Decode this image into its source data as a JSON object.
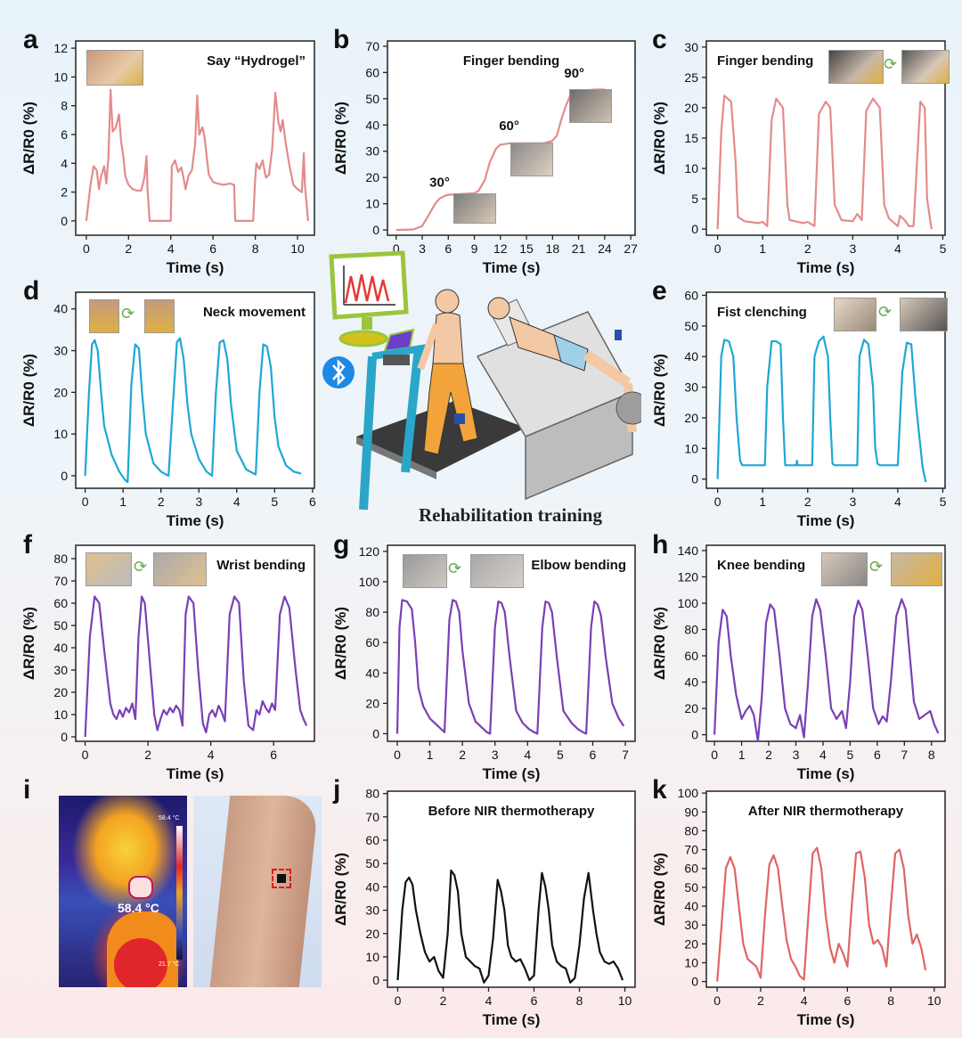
{
  "panel_labels": [
    "a",
    "b",
    "c",
    "d",
    "e",
    "f",
    "g",
    "h",
    "i",
    "j",
    "k"
  ],
  "center": {
    "caption": "Rehabilitation training",
    "colors": {
      "monitor": "#9bc53d",
      "bluetooth": "#1e88e5",
      "pants": "#f2a33a",
      "treadmill": "#2aa6c8"
    }
  },
  "thermal": {
    "temp_label": "58.4 °C",
    "scale_max": "58.4 °C",
    "scale_min": "21.7 °C"
  },
  "chart_data": [
    {
      "id": "a",
      "type": "line",
      "title": "Say “Hydrogel”",
      "xlabel": "Time (s)",
      "ylabel": "ΔR/R0 (%)",
      "xlim": [
        -0.5,
        10.8
      ],
      "ylim": [
        -1,
        12.5
      ],
      "xticks": [
        0,
        2,
        4,
        6,
        8,
        10
      ],
      "yticks": [
        0,
        2,
        4,
        6,
        8,
        10,
        12
      ],
      "color": "#e48b8b",
      "x": [
        0,
        0.2,
        0.35,
        0.5,
        0.6,
        0.7,
        0.85,
        0.95,
        1.05,
        1.15,
        1.25,
        1.4,
        1.55,
        1.65,
        1.75,
        1.85,
        2.0,
        2.2,
        2.4,
        2.6,
        2.75,
        2.85,
        2.9,
        3.0,
        3.05,
        3.1,
        3.6,
        4.0,
        4.05,
        4.2,
        4.35,
        4.5,
        4.6,
        4.7,
        4.85,
        5.0,
        5.15,
        5.25,
        5.35,
        5.5,
        5.6,
        5.7,
        5.8,
        6.0,
        6.2,
        6.5,
        6.8,
        7.0,
        7.05,
        7.5,
        7.9,
        8.0,
        8.05,
        8.2,
        8.35,
        8.5,
        8.65,
        8.8,
        8.95,
        9.1,
        9.2,
        9.3,
        9.45,
        9.6,
        9.8,
        10.0,
        10.2,
        10.3,
        10.35,
        10.5
      ],
      "y": [
        0,
        2.5,
        3.8,
        3.5,
        2.2,
        3.1,
        3.8,
        2.6,
        4.5,
        9.1,
        6.2,
        6.5,
        7.4,
        5.5,
        4.5,
        3.1,
        2.5,
        2.2,
        2.1,
        2.1,
        3.0,
        4.5,
        2.2,
        0,
        0,
        0,
        0,
        0,
        3.8,
        4.2,
        3.4,
        3.7,
        3.0,
        2.2,
        3.2,
        3.5,
        5.3,
        8.7,
        6.0,
        6.5,
        5.8,
        4.5,
        3.2,
        2.7,
        2.6,
        2.5,
        2.6,
        2.5,
        0,
        0,
        0,
        3.0,
        4.0,
        3.6,
        4.2,
        3.0,
        3.2,
        5.0,
        8.9,
        6.8,
        6.2,
        7.0,
        5.3,
        4.0,
        2.5,
        2.2,
        2.0,
        4.7,
        2.5,
        0
      ]
    },
    {
      "id": "b",
      "type": "line",
      "title": "Finger bending",
      "xlabel": "Time (s)",
      "ylabel": "ΔR/R0 (%)",
      "xlim": [
        -1,
        27.5
      ],
      "ylim": [
        -2,
        72
      ],
      "xticks": [
        0,
        3,
        6,
        9,
        12,
        15,
        18,
        21,
        24,
        27
      ],
      "yticks": [
        0,
        10,
        20,
        30,
        40,
        50,
        60,
        70
      ],
      "color": "#e48b8b",
      "annotations": [
        {
          "text": "30°",
          "x": 5,
          "y": 16.5
        },
        {
          "text": "60°",
          "x": 13,
          "y": 38
        },
        {
          "text": "90°",
          "x": 20.5,
          "y": 58
        }
      ],
      "x": [
        0,
        2,
        3,
        3.8,
        4.5,
        5,
        5.6,
        6,
        7,
        8,
        9,
        9.5,
        10.2,
        10.8,
        11.5,
        12,
        13,
        15,
        17,
        18,
        18.5,
        19,
        19.5,
        20,
        20.5,
        21,
        22,
        23,
        24
      ],
      "y": [
        0,
        0.2,
        1.5,
        6,
        10,
        12,
        13,
        13.4,
        13.6,
        13.8,
        14,
        15,
        19,
        26,
        31,
        32.5,
        33,
        33,
        33,
        34,
        36,
        42,
        47,
        51,
        52.5,
        53,
        53.3,
        53.5,
        53.5
      ]
    },
    {
      "id": "c",
      "type": "line",
      "title": "Finger bending",
      "xlabel": "Time (s)",
      "ylabel": "ΔR/R0 (%)",
      "xlim": [
        -0.25,
        5.05
      ],
      "ylim": [
        -1,
        31
      ],
      "xticks": [
        0,
        1,
        2,
        3,
        4,
        5
      ],
      "yticks": [
        0,
        5,
        10,
        15,
        20,
        25,
        30
      ],
      "color": "#e48b8b",
      "x": [
        0,
        0.08,
        0.15,
        0.3,
        0.4,
        0.45,
        0.6,
        0.9,
        1.0,
        1.1,
        1.2,
        1.3,
        1.45,
        1.55,
        1.6,
        1.9,
        2.0,
        2.15,
        2.25,
        2.4,
        2.5,
        2.6,
        2.75,
        3.0,
        3.1,
        3.2,
        3.3,
        3.45,
        3.6,
        3.7,
        3.8,
        4.0,
        4.05,
        4.15,
        4.25,
        4.35,
        4.5,
        4.6,
        4.65,
        4.75
      ],
      "y": [
        0,
        16,
        22,
        21,
        11,
        2,
        1.3,
        1.0,
        1.2,
        0.5,
        18,
        21.5,
        20,
        4,
        1.5,
        1.0,
        1.2,
        0.5,
        19,
        21,
        20,
        4,
        1.5,
        1.3,
        2.5,
        1.5,
        19.5,
        21.5,
        20,
        4,
        1.8,
        0.5,
        2.2,
        1.5,
        0.5,
        0.5,
        21,
        20,
        5,
        0
      ]
    },
    {
      "id": "d",
      "type": "line",
      "title": "Neck movement",
      "xlabel": "Time (s)",
      "ylabel": "ΔR/R0 (%)",
      "xlim": [
        -0.25,
        6.05
      ],
      "ylim": [
        -3,
        44
      ],
      "xticks": [
        0,
        1,
        2,
        3,
        4,
        5,
        6
      ],
      "yticks": [
        0,
        10,
        20,
        30,
        40
      ],
      "color": "#1ea7d6",
      "x": [
        0,
        0.1,
        0.18,
        0.25,
        0.33,
        0.42,
        0.5,
        0.7,
        0.9,
        1.05,
        1.12,
        1.22,
        1.32,
        1.42,
        1.5,
        1.6,
        1.8,
        2.0,
        2.2,
        2.3,
        2.42,
        2.5,
        2.6,
        2.7,
        2.8,
        3.0,
        3.2,
        3.35,
        3.45,
        3.55,
        3.65,
        3.75,
        3.85,
        4.0,
        4.25,
        4.5,
        4.6,
        4.7,
        4.8,
        4.9,
        5.0,
        5.1,
        5.3,
        5.5,
        5.7
      ],
      "y": [
        0,
        20,
        31.5,
        32.5,
        30,
        20,
        12,
        5,
        1,
        -1,
        -1.5,
        22,
        31.5,
        30.5,
        20,
        10,
        3,
        1,
        0,
        15,
        32,
        33,
        28,
        17,
        10,
        4,
        1,
        0,
        20,
        32,
        32.5,
        28,
        17,
        6,
        1.5,
        0.3,
        20,
        31.5,
        31,
        26,
        14,
        7,
        2.5,
        1,
        0.5
      ]
    },
    {
      "id": "e",
      "type": "line",
      "title": "Fist clenching",
      "xlabel": "Time (s)",
      "ylabel": "ΔR/R0 (%)",
      "xlim": [
        -0.25,
        5.05
      ],
      "ylim": [
        -3,
        61
      ],
      "xticks": [
        0,
        1,
        2,
        3,
        4,
        5
      ],
      "yticks": [
        0,
        10,
        20,
        30,
        40,
        50,
        60
      ],
      "color": "#1ea7d6",
      "x": [
        0,
        0.08,
        0.15,
        0.25,
        0.35,
        0.42,
        0.5,
        0.55,
        0.9,
        1.05,
        1.1,
        1.2,
        1.3,
        1.4,
        1.45,
        1.5,
        1.6,
        1.75,
        1.76,
        1.78,
        2.1,
        2.15,
        2.25,
        2.35,
        2.45,
        2.5,
        2.55,
        2.6,
        3.1,
        3.15,
        3.25,
        3.35,
        3.45,
        3.5,
        3.55,
        3.6,
        4.0,
        4.1,
        4.2,
        4.3,
        4.4,
        4.55,
        4.62
      ],
      "y": [
        0,
        40,
        45.5,
        45,
        40,
        20,
        6,
        4.5,
        4.5,
        4.5,
        30,
        45,
        45,
        44,
        20,
        4.5,
        4.5,
        4.5,
        6,
        4.5,
        4.5,
        40,
        45,
        46.5,
        40,
        20,
        5,
        4.5,
        4.5,
        40,
        45.5,
        44,
        30,
        10,
        5,
        4.5,
        4.5,
        35,
        44.5,
        44,
        25,
        4,
        -1
      ]
    },
    {
      "id": "f",
      "type": "line",
      "title": "Wrist bending",
      "xlabel": "Time (s)",
      "ylabel": "ΔR/R0 (%)",
      "xlim": [
        -0.3,
        7.3
      ],
      "ylim": [
        -2,
        86
      ],
      "xticks": [
        0,
        2,
        4,
        6
      ],
      "yticks": [
        0,
        10,
        20,
        30,
        40,
        50,
        60,
        70,
        80
      ],
      "color": "#7a3fb5",
      "x": [
        0,
        0.15,
        0.3,
        0.45,
        0.6,
        0.8,
        0.9,
        1.0,
        1.1,
        1.2,
        1.3,
        1.4,
        1.5,
        1.6,
        1.7,
        1.8,
        1.9,
        2.05,
        2.2,
        2.3,
        2.4,
        2.5,
        2.6,
        2.7,
        2.8,
        2.9,
        3.0,
        3.1,
        3.2,
        3.3,
        3.45,
        3.6,
        3.75,
        3.85,
        3.95,
        4.05,
        4.15,
        4.25,
        4.35,
        4.45,
        4.6,
        4.75,
        4.9,
        5.05,
        5.2,
        5.35,
        5.45,
        5.55,
        5.65,
        5.75,
        5.85,
        5.95,
        6.05,
        6.2,
        6.35,
        6.5,
        6.7,
        6.85,
        6.95,
        7.05
      ],
      "y": [
        0,
        45,
        63,
        60,
        40,
        15,
        10,
        8,
        12,
        9,
        13,
        11,
        15,
        8,
        45,
        63,
        60,
        35,
        10,
        3,
        8,
        12,
        10,
        13,
        11,
        14,
        12,
        5,
        55,
        63,
        60,
        30,
        6,
        2,
        10,
        12,
        9,
        14,
        11,
        7,
        55,
        63,
        60,
        25,
        5,
        3,
        12,
        10,
        16,
        13,
        11,
        15,
        12,
        55,
        63,
        58,
        30,
        12,
        8,
        5
      ]
    },
    {
      "id": "g",
      "type": "line",
      "title": "Elbow bending",
      "xlabel": "Time (s)",
      "ylabel": "ΔR/R0 (%)",
      "xlim": [
        -0.3,
        7.3
      ],
      "ylim": [
        -5,
        124
      ],
      "xticks": [
        0,
        1,
        2,
        3,
        4,
        5,
        6,
        7
      ],
      "yticks": [
        0,
        20,
        40,
        60,
        80,
        100,
        120
      ],
      "color": "#7a3fb5",
      "x": [
        0,
        0.07,
        0.15,
        0.3,
        0.45,
        0.55,
        0.65,
        0.8,
        1.0,
        1.2,
        1.35,
        1.45,
        1.6,
        1.7,
        1.8,
        1.9,
        2.0,
        2.2,
        2.4,
        2.6,
        2.75,
        2.85,
        3.0,
        3.1,
        3.2,
        3.3,
        3.45,
        3.65,
        3.85,
        4.05,
        4.2,
        4.3,
        4.45,
        4.55,
        4.65,
        4.75,
        4.9,
        5.1,
        5.35,
        5.55,
        5.7,
        5.8,
        5.95,
        6.05,
        6.15,
        6.25,
        6.4,
        6.6,
        6.8,
        6.95
      ],
      "y": [
        0,
        70,
        88,
        87,
        82,
        60,
        30,
        18,
        10,
        6,
        3,
        1,
        75,
        88,
        87,
        80,
        55,
        20,
        8,
        4,
        1,
        0,
        70,
        87,
        86,
        80,
        50,
        15,
        7,
        3,
        1,
        0,
        70,
        87,
        86,
        80,
        50,
        15,
        7,
        3,
        1,
        0,
        70,
        87,
        85,
        78,
        50,
        20,
        10,
        5
      ]
    },
    {
      "id": "h",
      "type": "line",
      "title": "Knee bending",
      "xlabel": "Time (s)",
      "ylabel": "ΔR/R0 (%)",
      "xlim": [
        -0.3,
        8.5
      ],
      "ylim": [
        -5,
        144
      ],
      "xticks": [
        0,
        1,
        2,
        3,
        4,
        5,
        6,
        7,
        8
      ],
      "yticks": [
        0,
        20,
        40,
        60,
        80,
        100,
        120,
        140
      ],
      "color": "#7a3fb5",
      "x": [
        0,
        0.15,
        0.3,
        0.45,
        0.6,
        0.8,
        1.0,
        1.15,
        1.3,
        1.45,
        1.6,
        1.75,
        1.9,
        2.05,
        2.2,
        2.4,
        2.6,
        2.8,
        3.0,
        3.15,
        3.3,
        3.45,
        3.6,
        3.75,
        3.9,
        4.1,
        4.3,
        4.5,
        4.7,
        4.85,
        5.0,
        5.15,
        5.3,
        5.45,
        5.65,
        5.85,
        6.05,
        6.2,
        6.35,
        6.5,
        6.7,
        6.9,
        7.05,
        7.2,
        7.35,
        7.55,
        7.75,
        7.95,
        8.1,
        8.25
      ],
      "y": [
        0,
        70,
        95,
        90,
        60,
        30,
        12,
        18,
        22,
        15,
        -5,
        30,
        85,
        99,
        95,
        60,
        20,
        8,
        5,
        15,
        -2,
        40,
        90,
        103,
        95,
        60,
        20,
        12,
        18,
        5,
        40,
        90,
        102,
        95,
        60,
        20,
        8,
        14,
        10,
        40,
        90,
        103,
        95,
        60,
        25,
        12,
        15,
        18,
        8,
        1
      ]
    },
    {
      "id": "j",
      "type": "line",
      "title": "Before NIR thermotherapy",
      "xlabel": "Time (s)",
      "ylabel": "ΔR/R0 (%)",
      "xlim": [
        -0.45,
        10.45
      ],
      "ylim": [
        -3,
        81
      ],
      "xticks": [
        0,
        2,
        4,
        6,
        8,
        10
      ],
      "yticks": [
        0,
        10,
        20,
        30,
        40,
        50,
        60,
        70,
        80
      ],
      "color": "#111111",
      "x": [
        0,
        0.2,
        0.35,
        0.5,
        0.65,
        0.8,
        1.0,
        1.2,
        1.4,
        1.6,
        1.8,
        2.0,
        2.2,
        2.35,
        2.5,
        2.65,
        2.8,
        3.0,
        3.2,
        3.4,
        3.6,
        3.8,
        4.0,
        4.2,
        4.4,
        4.55,
        4.7,
        4.85,
        5.0,
        5.2,
        5.4,
        5.6,
        5.8,
        6.0,
        6.2,
        6.35,
        6.5,
        6.65,
        6.8,
        7.0,
        7.2,
        7.4,
        7.6,
        7.8,
        8.0,
        8.2,
        8.4,
        8.6,
        8.75,
        8.9,
        9.1,
        9.3,
        9.5,
        9.7,
        9.9
      ],
      "y": [
        0,
        30,
        42,
        44,
        41,
        30,
        20,
        12,
        8,
        10,
        4,
        1,
        20,
        47,
        45,
        38,
        20,
        10,
        8,
        6,
        5,
        -1,
        2,
        18,
        43,
        38,
        30,
        15,
        10,
        8,
        9,
        5,
        0,
        2,
        30,
        46,
        40,
        30,
        15,
        8,
        6,
        5,
        -1,
        1,
        15,
        35,
        46,
        30,
        20,
        12,
        8,
        7,
        8,
        5,
        0
      ]
    },
    {
      "id": "k",
      "type": "line",
      "title": "After NIR thermotherapy",
      "xlabel": "Time (s)",
      "ylabel": "ΔR/R0 (%)",
      "xlim": [
        -0.5,
        10.5
      ],
      "ylim": [
        -3,
        101
      ],
      "xticks": [
        0,
        2,
        4,
        6,
        8,
        10
      ],
      "yticks": [
        0,
        10,
        20,
        30,
        40,
        50,
        60,
        70,
        80,
        90,
        100
      ],
      "color": "#e06464",
      "x": [
        0,
        0.2,
        0.4,
        0.6,
        0.8,
        1.0,
        1.2,
        1.4,
        1.6,
        1.8,
        2.0,
        2.2,
        2.4,
        2.6,
        2.8,
        3.0,
        3.2,
        3.4,
        3.6,
        3.8,
        4.0,
        4.2,
        4.4,
        4.6,
        4.8,
        5.0,
        5.2,
        5.4,
        5.6,
        5.8,
        6.0,
        6.2,
        6.4,
        6.6,
        6.8,
        7.0,
        7.2,
        7.4,
        7.6,
        7.8,
        8.0,
        8.2,
        8.4,
        8.6,
        8.8,
        9.0,
        9.2,
        9.4,
        9.6
      ],
      "y": [
        0,
        30,
        60,
        66,
        60,
        40,
        20,
        12,
        10,
        8,
        2,
        35,
        62,
        67,
        60,
        40,
        22,
        12,
        8,
        3,
        1,
        35,
        68,
        71,
        60,
        35,
        18,
        10,
        20,
        15,
        8,
        40,
        68,
        69,
        55,
        30,
        20,
        22,
        18,
        8,
        40,
        68,
        70,
        60,
        35,
        20,
        25,
        18,
        6
      ]
    }
  ]
}
